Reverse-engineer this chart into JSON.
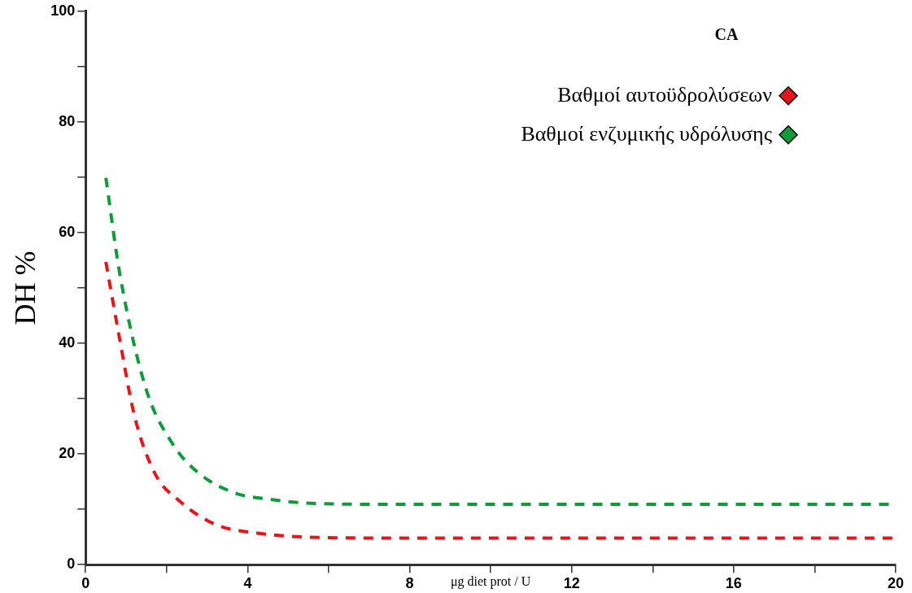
{
  "chart_data": {
    "type": "line",
    "xlabel": "μg diet prot / U",
    "ylabel": "DH %",
    "annotations": [
      "CA"
    ],
    "xlim": [
      0,
      20
    ],
    "xticks": [
      0,
      {
        "value": 2,
        "label": null
      },
      4,
      {
        "value": 6,
        "label": null
      },
      8,
      {
        "value": 10,
        "label": null
      },
      12,
      {
        "value": 14,
        "label": null
      },
      16,
      {
        "value": 18,
        "label": null
      },
      20
    ],
    "ylim": [
      0,
      100
    ],
    "yticks": [
      0,
      {
        "value": 10,
        "label": null
      },
      20,
      {
        "value": 30,
        "label": null
      },
      40,
      {
        "value": 50,
        "label": null
      },
      60,
      {
        "value": 70,
        "label": null
      },
      80,
      {
        "value": 90,
        "label": null
      },
      100
    ],
    "grid": false,
    "legend": "top right",
    "line_style": "dashed",
    "marker": "none",
    "series": [
      {
        "name": "Βαθμοί αυτοϋδρολύσεων",
        "color": "#e8141c",
        "x": [
          0.5,
          0.81,
          1.21,
          1.71,
          2.32,
          3.2,
          4.13,
          5.9,
          8,
          12,
          16,
          20
        ],
        "values": [
          54.7,
          42.0,
          26.8,
          16.5,
          11.5,
          7.3,
          5.8,
          4.9,
          4.8,
          4.8,
          4.8,
          4.8
        ]
      },
      {
        "name": "Βαθμοί ενζυμικής υδρόλυσης",
        "color": "#109a3c",
        "x": [
          0.5,
          0.85,
          1.49,
          2.16,
          2.8,
          3.67,
          4.54,
          5.9,
          8,
          12,
          16,
          20
        ],
        "values": [
          69.9,
          52.3,
          31.8,
          21.7,
          16.5,
          13.0,
          11.8,
          11.0,
          10.9,
          10.9,
          10.9,
          10.9
        ]
      }
    ]
  }
}
